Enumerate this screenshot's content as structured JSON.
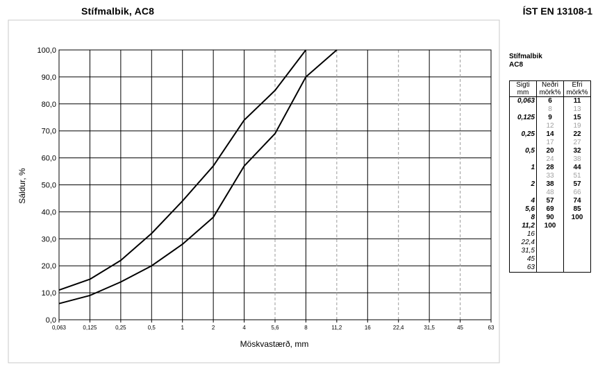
{
  "header": {
    "title_left": "Stífmalbik, AC8",
    "title_right": "ÍST EN 13108-1"
  },
  "table": {
    "caption_line1": "Stífmalbik",
    "caption_line2": "AC8",
    "col_sieve_l1": "Sigti",
    "col_sieve_l2": "mm",
    "col_lower_l1": "Neðri",
    "col_lower_l2": "mörk%",
    "col_upper_l1": "Efri",
    "col_upper_l2": "mörk%",
    "rows": [
      {
        "sieve": "0,063",
        "lower": "6",
        "upper": "11",
        "type": "main"
      },
      {
        "sieve": "",
        "lower": "8",
        "upper": "13",
        "type": "mid"
      },
      {
        "sieve": "0,125",
        "lower": "9",
        "upper": "15",
        "type": "main"
      },
      {
        "sieve": "",
        "lower": "12",
        "upper": "19",
        "type": "mid"
      },
      {
        "sieve": "0,25",
        "lower": "14",
        "upper": "22",
        "type": "main"
      },
      {
        "sieve": "",
        "lower": "17",
        "upper": "27",
        "type": "mid"
      },
      {
        "sieve": "0,5",
        "lower": "20",
        "upper": "32",
        "type": "main"
      },
      {
        "sieve": "",
        "lower": "24",
        "upper": "38",
        "type": "mid"
      },
      {
        "sieve": "1",
        "lower": "28",
        "upper": "44",
        "type": "main"
      },
      {
        "sieve": "",
        "lower": "33",
        "upper": "51",
        "type": "mid"
      },
      {
        "sieve": "2",
        "lower": "38",
        "upper": "57",
        "type": "main"
      },
      {
        "sieve": "",
        "lower": "48",
        "upper": "66",
        "type": "mid"
      },
      {
        "sieve": "4",
        "lower": "57",
        "upper": "74",
        "type": "main"
      },
      {
        "sieve": "5,6",
        "lower": "69",
        "upper": "85",
        "type": "main"
      },
      {
        "sieve": "8",
        "lower": "90",
        "upper": "100",
        "type": "main"
      },
      {
        "sieve": "11,2",
        "lower": "100",
        "upper": "",
        "type": "main"
      },
      {
        "sieve": "16",
        "lower": "",
        "upper": "",
        "type": "plain"
      },
      {
        "sieve": "22,4",
        "lower": "",
        "upper": "",
        "type": "plain"
      },
      {
        "sieve": "31,5",
        "lower": "",
        "upper": "",
        "type": "plain"
      },
      {
        "sieve": "45",
        "lower": "",
        "upper": "",
        "type": "plain"
      },
      {
        "sieve": "63",
        "lower": "",
        "upper": "",
        "type": "plain"
      }
    ]
  },
  "chart_data": {
    "type": "line",
    "title": "Stífmalbik, AC8",
    "xlabel": "Möskvastærð, mm",
    "ylabel": "Sáldur, %",
    "ylim": [
      0,
      100
    ],
    "y_ticks": [
      "0,0",
      "10,0",
      "20,0",
      "30,0",
      "40,0",
      "50,0",
      "60,0",
      "70,0",
      "80,0",
      "90,0",
      "100,0"
    ],
    "x_ticks": [
      "0,063",
      "0,125",
      "0,25",
      "0,5",
      "1",
      "2",
      "4",
      "5,6",
      "8",
      "11,2",
      "16",
      "22,4",
      "31,5",
      "45",
      "63"
    ],
    "x_solid_gridlines": [
      "0,063",
      "0,125",
      "0,25",
      "0,5",
      "1",
      "2",
      "4",
      "8",
      "16",
      "31,5",
      "63"
    ],
    "x_dashed_gridlines": [
      "5,6",
      "11,2",
      "22,4",
      "45"
    ],
    "grid": true,
    "series": [
      {
        "x": [
          "0,063",
          "0,125",
          "0,25",
          "0,5",
          "1",
          "2",
          "4",
          "5,6",
          "8"
        ],
        "values": [
          11,
          15,
          22,
          32,
          44,
          57,
          74,
          85,
          100
        ]
      },
      {
        "x": [
          "0,063",
          "0,125",
          "0,25",
          "0,5",
          "1",
          "2",
          "4",
          "5,6",
          "8",
          "11,2"
        ],
        "values": [
          6,
          9,
          14,
          20,
          28,
          38,
          57,
          69,
          90,
          100
        ]
      }
    ]
  }
}
